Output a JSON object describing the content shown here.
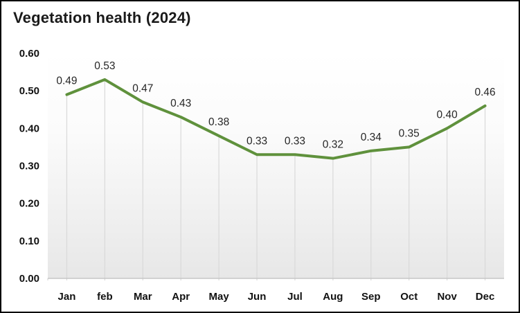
{
  "title": "Vegetation health (2024)",
  "chart_data": {
    "type": "line",
    "title": "Vegetation health (2024)",
    "categories": [
      "Jan",
      "feb",
      "Mar",
      "Apr",
      "May",
      "Jun",
      "Jul",
      "Aug",
      "Sep",
      "Oct",
      "Nov",
      "Dec"
    ],
    "values": [
      0.49,
      0.53,
      0.47,
      0.43,
      0.38,
      0.33,
      0.33,
      0.32,
      0.34,
      0.35,
      0.4,
      0.46
    ],
    "data_labels": [
      "0.49",
      "0.53",
      "0.47",
      "0.43",
      "0.38",
      "0.33",
      "0.33",
      "0.32",
      "0.34",
      "0.35",
      "0.40",
      "0.46"
    ],
    "xlabel": "",
    "ylabel": "",
    "ylim": [
      0,
      0.6
    ],
    "yticks": [
      0,
      0.1,
      0.2,
      0.3,
      0.4,
      0.5,
      0.6
    ],
    "ytick_labels": [
      "0.00",
      "0.10",
      "0.20",
      "0.30",
      "0.40",
      "0.50",
      "0.60"
    ],
    "grid": "vertical-drop-lines-only",
    "legend": "none",
    "colors": {
      "line": "#5f913c",
      "drop_line": "#d9d9d9",
      "axis_line": "#c6c6c6",
      "tick_label": "#111111",
      "data_label": "#262626",
      "title": "#1a1a1a",
      "frame_border": "#000000",
      "plot_bg_top": "#ffffff",
      "plot_bg_bottom": "#e7e7e7"
    }
  }
}
